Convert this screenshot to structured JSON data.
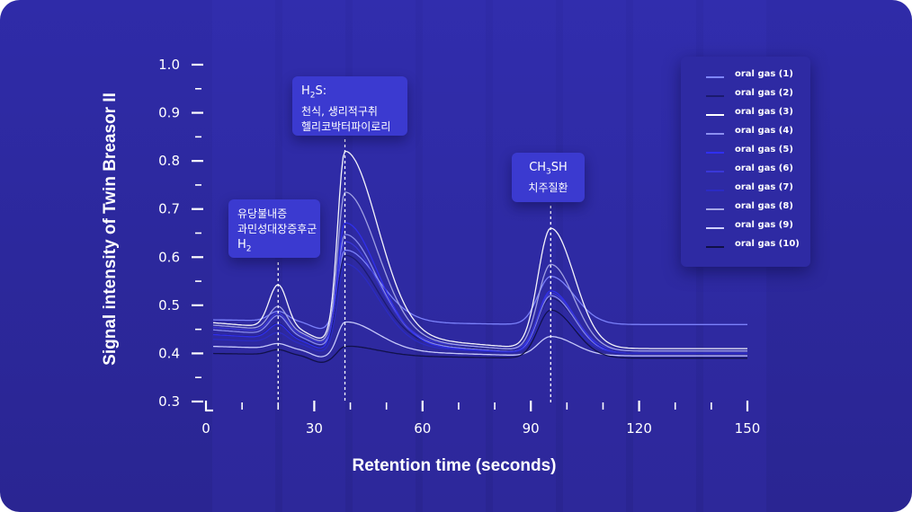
{
  "chart_data": {
    "type": "line",
    "xlabel": "Retention time (seconds)",
    "ylabel": "Signal intensity of Twin Breasor II",
    "xlim": [
      0,
      150
    ],
    "ylim": [
      0.3,
      1.0
    ],
    "x_ticks": [
      "0",
      "30",
      "60",
      "90",
      "120",
      "150"
    ],
    "y_ticks": [
      "0.3",
      "0.4",
      "0.5",
      "0.6",
      "0.7",
      "0.8",
      "0.9",
      "1.0"
    ],
    "legend_position": "top-right",
    "annotations": [
      {
        "id": "h2",
        "x": 20,
        "lines": [
          "유당불내증",
          "과민성대장증후군"
        ],
        "formula": "H",
        "formula_sub": "2",
        "formula_suffix": ""
      },
      {
        "id": "h2s",
        "x": 38.5,
        "lines": [
          "천식, 생리적구취",
          "헬리코박터파이로리"
        ],
        "formula": "H",
        "formula_sub": "2",
        "formula_suffix": "S:"
      },
      {
        "id": "ch3sh",
        "x": 95.5,
        "lines": [
          "치주질환"
        ],
        "formula": "CH",
        "formula_sub": "3",
        "formula_suffix": "SH"
      }
    ],
    "series": [
      {
        "name": "oral gas (1)",
        "color": "#7f86ff",
        "baseline_start": 0.47,
        "baseline_end": 0.46,
        "h2": 0.02,
        "h2s": 0.15,
        "ch3sh": 0.1
      },
      {
        "name": "oral gas (2)",
        "color": "#1b1a6e",
        "baseline_start": 0.44,
        "baseline_end": 0.405,
        "h2": 0.03,
        "h2s": 0.18,
        "ch3sh": 0.11
      },
      {
        "name": "oral gas (3)",
        "color": "#ffffff",
        "baseline_start": 0.465,
        "baseline_end": 0.41,
        "h2": 0.09,
        "h2s": 0.38,
        "ch3sh": 0.25
      },
      {
        "name": "oral gas (4)",
        "color": "#8c8ff0",
        "baseline_start": 0.45,
        "baseline_end": 0.4,
        "h2": 0.04,
        "h2s": 0.22,
        "ch3sh": 0.12
      },
      {
        "name": "oral gas (5)",
        "color": "#2f2ff0",
        "baseline_start": 0.44,
        "baseline_end": 0.4,
        "h2": 0.03,
        "h2s": 0.25,
        "ch3sh": 0.13
      },
      {
        "name": "oral gas (6)",
        "color": "#3a37d8",
        "baseline_start": 0.455,
        "baseline_end": 0.405,
        "h2": 0.04,
        "h2s": 0.2,
        "ch3sh": 0.12
      },
      {
        "name": "oral gas (7)",
        "color": "#2b2bc4",
        "baseline_start": 0.43,
        "baseline_end": 0.4,
        "h2": 0.02,
        "h2s": 0.17,
        "ch3sh": 0.09
      },
      {
        "name": "oral gas (8)",
        "color": "#a6a8e6",
        "baseline_start": 0.46,
        "baseline_end": 0.405,
        "h2": 0.05,
        "h2s": 0.3,
        "ch3sh": 0.18
      },
      {
        "name": "oral gas (9)",
        "color": "#cfd1ff",
        "baseline_start": 0.415,
        "baseline_end": 0.395,
        "h2": 0.01,
        "h2s": 0.06,
        "ch3sh": 0.04
      },
      {
        "name": "oral gas (10)",
        "color": "#101046",
        "baseline_start": 0.4,
        "baseline_end": 0.39,
        "h2": 0.01,
        "h2s": 0.02,
        "ch3sh": 0.1
      }
    ]
  }
}
